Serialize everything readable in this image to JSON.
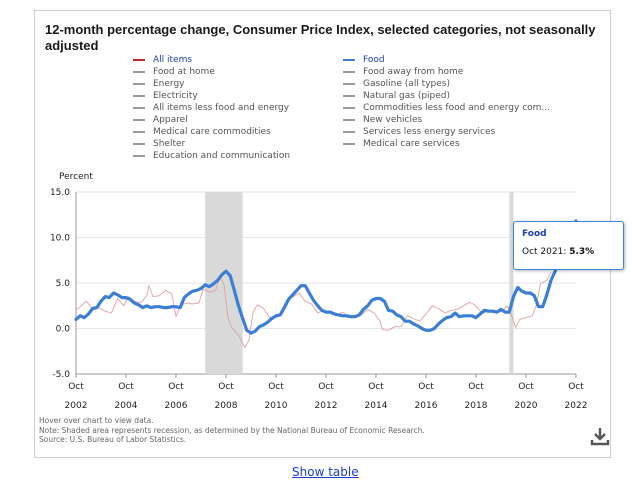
{
  "title": "12-month percentage change, Consumer Price Index, selected categories, not seasonally adjusted",
  "legend": {
    "left": [
      {
        "label": "All items",
        "color": "#c62828",
        "highlight": true
      },
      {
        "label": "Food at home",
        "color": "#9a9a9a"
      },
      {
        "label": "Energy",
        "color": "#9a9a9a"
      },
      {
        "label": "Electricity",
        "color": "#9a9a9a"
      },
      {
        "label": "All items less food and energy",
        "color": "#9a9a9a"
      },
      {
        "label": "Apparel",
        "color": "#9a9a9a"
      },
      {
        "label": "Medical care commodities",
        "color": "#9a9a9a"
      },
      {
        "label": "Shelter",
        "color": "#9a9a9a"
      },
      {
        "label": "Education and communication",
        "color": "#9a9a9a"
      }
    ],
    "right": [
      {
        "label": "Food",
        "color": "#3a7fd5",
        "highlight": true
      },
      {
        "label": "Food away from home",
        "color": "#9a9a9a"
      },
      {
        "label": "Gasoline (all types)",
        "color": "#9a9a9a"
      },
      {
        "label": "Natural gas (piped)",
        "color": "#9a9a9a"
      },
      {
        "label": "Commodities less food and energy com...",
        "color": "#9a9a9a"
      },
      {
        "label": "New vehicles",
        "color": "#9a9a9a"
      },
      {
        "label": "Services less energy services",
        "color": "#9a9a9a"
      },
      {
        "label": "Medical care services",
        "color": "#9a9a9a"
      }
    ]
  },
  "tooltip": {
    "series": "Food",
    "date": "Oct 2021",
    "value": "5.3%"
  },
  "footnotes": [
    "Hover over chart to view data.",
    "Note: Shaded area represents recession, as determined by the National Bureau of Economic Research.",
    "Source: U.S. Bureau of Labor Statistics."
  ],
  "show_table": "Show table",
  "icons": {
    "download": "download-icon"
  },
  "chart_data": {
    "type": "line",
    "ylabel": "Percent",
    "ylim": [
      -5,
      15
    ],
    "yticks": [
      "15.0",
      "10.0",
      "5.0",
      "0.0",
      "-5.0"
    ],
    "xticks": [
      {
        "line1": "Oct",
        "line2": "2002"
      },
      {
        "line1": "Oct",
        "line2": "2004"
      },
      {
        "line1": "Oct",
        "line2": "2006"
      },
      {
        "line1": "Oct",
        "line2": "2008"
      },
      {
        "line1": "Oct",
        "line2": "2010"
      },
      {
        "line1": "Oct",
        "line2": "2012"
      },
      {
        "line1": "Oct",
        "line2": "2014"
      },
      {
        "line1": "Oct",
        "line2": "2016"
      },
      {
        "line1": "Oct",
        "line2": "2018"
      },
      {
        "line1": "Oct",
        "line2": "2020"
      },
      {
        "line1": "Oct",
        "line2": "2022"
      }
    ],
    "xlim": [
      "2002-10",
      "2022-10"
    ],
    "grid": true,
    "recessions": [
      [
        "2007-12",
        "2009-06"
      ],
      [
        "2020-02",
        "2020-04"
      ]
    ],
    "series": [
      {
        "name": "Food",
        "color": "#3a7fd5",
        "points": [
          [
            "2002-10",
            1.0
          ],
          [
            "2002-12",
            1.4
          ],
          [
            "2003-02",
            1.2
          ],
          [
            "2003-04",
            1.6
          ],
          [
            "2003-06",
            2.2
          ],
          [
            "2003-08",
            2.3
          ],
          [
            "2003-10",
            3.0
          ],
          [
            "2003-12",
            3.5
          ],
          [
            "2004-02",
            3.4
          ],
          [
            "2004-04",
            3.9
          ],
          [
            "2004-06",
            3.7
          ],
          [
            "2004-08",
            3.4
          ],
          [
            "2004-10",
            3.4
          ],
          [
            "2004-12",
            3.2
          ],
          [
            "2005-02",
            2.8
          ],
          [
            "2005-04",
            2.6
          ],
          [
            "2005-06",
            2.3
          ],
          [
            "2005-08",
            2.5
          ],
          [
            "2005-10",
            2.3
          ],
          [
            "2005-12",
            2.4
          ],
          [
            "2006-02",
            2.4
          ],
          [
            "2006-04",
            2.3
          ],
          [
            "2006-06",
            2.3
          ],
          [
            "2006-08",
            2.4
          ],
          [
            "2006-10",
            2.4
          ],
          [
            "2006-12",
            2.3
          ],
          [
            "2007-02",
            3.4
          ],
          [
            "2007-04",
            3.8
          ],
          [
            "2007-06",
            4.1
          ],
          [
            "2007-08",
            4.2
          ],
          [
            "2007-10",
            4.4
          ],
          [
            "2007-12",
            4.8
          ],
          [
            "2008-02",
            4.6
          ],
          [
            "2008-04",
            4.9
          ],
          [
            "2008-06",
            5.3
          ],
          [
            "2008-08",
            5.9
          ],
          [
            "2008-10",
            6.3
          ],
          [
            "2008-12",
            5.8
          ],
          [
            "2009-02",
            4.2
          ],
          [
            "2009-04",
            2.5
          ],
          [
            "2009-06",
            1.1
          ],
          [
            "2009-08",
            -0.2
          ],
          [
            "2009-10",
            -0.5
          ],
          [
            "2009-12",
            -0.3
          ],
          [
            "2010-02",
            0.2
          ],
          [
            "2010-04",
            0.4
          ],
          [
            "2010-06",
            0.7
          ],
          [
            "2010-08",
            1.1
          ],
          [
            "2010-10",
            1.4
          ],
          [
            "2010-12",
            1.5
          ],
          [
            "2011-02",
            2.3
          ],
          [
            "2011-04",
            3.2
          ],
          [
            "2011-06",
            3.7
          ],
          [
            "2011-08",
            4.2
          ],
          [
            "2011-10",
            4.7
          ],
          [
            "2011-12",
            4.7
          ],
          [
            "2012-02",
            3.9
          ],
          [
            "2012-04",
            3.1
          ],
          [
            "2012-06",
            2.5
          ],
          [
            "2012-08",
            2.0
          ],
          [
            "2012-10",
            1.8
          ],
          [
            "2012-12",
            1.8
          ],
          [
            "2013-02",
            1.6
          ],
          [
            "2013-04",
            1.5
          ],
          [
            "2013-06",
            1.4
          ],
          [
            "2013-08",
            1.4
          ],
          [
            "2013-10",
            1.3
          ],
          [
            "2013-12",
            1.3
          ],
          [
            "2014-02",
            1.5
          ],
          [
            "2014-04",
            2.1
          ],
          [
            "2014-06",
            2.5
          ],
          [
            "2014-08",
            3.1
          ],
          [
            "2014-10",
            3.3
          ],
          [
            "2014-12",
            3.3
          ],
          [
            "2015-02",
            3.0
          ],
          [
            "2015-04",
            2.0
          ],
          [
            "2015-06",
            1.9
          ],
          [
            "2015-08",
            1.5
          ],
          [
            "2015-10",
            1.3
          ],
          [
            "2015-12",
            0.8
          ],
          [
            "2016-02",
            0.8
          ],
          [
            "2016-04",
            0.5
          ],
          [
            "2016-06",
            0.3
          ],
          [
            "2016-08",
            0.0
          ],
          [
            "2016-10",
            -0.2
          ],
          [
            "2016-12",
            -0.2
          ],
          [
            "2017-02",
            0.0
          ],
          [
            "2017-04",
            0.5
          ],
          [
            "2017-06",
            0.9
          ],
          [
            "2017-08",
            1.2
          ],
          [
            "2017-10",
            1.3
          ],
          [
            "2017-12",
            1.7
          ],
          [
            "2018-02",
            1.3
          ],
          [
            "2018-04",
            1.4
          ],
          [
            "2018-06",
            1.4
          ],
          [
            "2018-08",
            1.4
          ],
          [
            "2018-10",
            1.2
          ],
          [
            "2018-12",
            1.6
          ],
          [
            "2019-02",
            2.0
          ],
          [
            "2019-04",
            1.9
          ],
          [
            "2019-06",
            1.9
          ],
          [
            "2019-08",
            1.8
          ],
          [
            "2019-10",
            2.1
          ],
          [
            "2019-12",
            1.8
          ],
          [
            "2020-02",
            1.8
          ],
          [
            "2020-04",
            3.5
          ],
          [
            "2020-06",
            4.5
          ],
          [
            "2020-08",
            4.1
          ],
          [
            "2020-10",
            3.9
          ],
          [
            "2020-12",
            3.9
          ],
          [
            "2021-02",
            3.6
          ],
          [
            "2021-04",
            2.4
          ],
          [
            "2021-06",
            2.4
          ],
          [
            "2021-08",
            3.7
          ],
          [
            "2021-10",
            5.3
          ],
          [
            "2021-12",
            6.3
          ],
          [
            "2022-02",
            7.9
          ],
          [
            "2022-04",
            9.4
          ],
          [
            "2022-06",
            10.4
          ],
          [
            "2022-08",
            11.4
          ],
          [
            "2022-10",
            11.8
          ]
        ]
      },
      {
        "name": "All items",
        "color": "#e0a0a0",
        "points": [
          [
            "2002-10",
            2.0
          ],
          [
            "2003-01",
            2.6
          ],
          [
            "2003-03",
            3.0
          ],
          [
            "2003-06",
            2.1
          ],
          [
            "2003-09",
            2.3
          ],
          [
            "2003-12",
            1.9
          ],
          [
            "2004-03",
            1.7
          ],
          [
            "2004-06",
            3.3
          ],
          [
            "2004-09",
            2.5
          ],
          [
            "2004-11",
            3.5
          ],
          [
            "2005-02",
            3.0
          ],
          [
            "2005-05",
            2.8
          ],
          [
            "2005-08",
            3.6
          ],
          [
            "2005-09",
            4.7
          ],
          [
            "2005-11",
            3.5
          ],
          [
            "2006-02",
            3.6
          ],
          [
            "2006-05",
            4.2
          ],
          [
            "2006-08",
            3.8
          ],
          [
            "2006-10",
            1.3
          ],
          [
            "2006-12",
            2.5
          ],
          [
            "2007-03",
            2.8
          ],
          [
            "2007-06",
            2.7
          ],
          [
            "2007-09",
            2.8
          ],
          [
            "2007-11",
            4.3
          ],
          [
            "2008-02",
            4.0
          ],
          [
            "2008-05",
            4.2
          ],
          [
            "2008-07",
            5.6
          ],
          [
            "2008-09",
            4.9
          ],
          [
            "2008-11",
            1.1
          ],
          [
            "2009-01",
            0.0
          ],
          [
            "2009-04",
            -0.7
          ],
          [
            "2009-07",
            -2.1
          ],
          [
            "2009-09",
            -1.3
          ],
          [
            "2009-11",
            1.8
          ],
          [
            "2010-01",
            2.6
          ],
          [
            "2010-04",
            2.2
          ],
          [
            "2010-07",
            1.2
          ],
          [
            "2010-10",
            1.2
          ],
          [
            "2011-01",
            1.6
          ],
          [
            "2011-04",
            3.2
          ],
          [
            "2011-07",
            3.6
          ],
          [
            "2011-09",
            3.9
          ],
          [
            "2011-12",
            3.0
          ],
          [
            "2012-03",
            2.7
          ],
          [
            "2012-06",
            1.7
          ],
          [
            "2012-09",
            2.0
          ],
          [
            "2012-12",
            1.7
          ],
          [
            "2013-03",
            1.5
          ],
          [
            "2013-06",
            1.8
          ],
          [
            "2013-09",
            1.2
          ],
          [
            "2013-12",
            1.5
          ],
          [
            "2014-03",
            1.5
          ],
          [
            "2014-06",
            2.1
          ],
          [
            "2014-09",
            1.7
          ],
          [
            "2014-12",
            0.8
          ],
          [
            "2015-01",
            -0.1
          ],
          [
            "2015-04",
            -0.2
          ],
          [
            "2015-07",
            0.2
          ],
          [
            "2015-10",
            0.2
          ],
          [
            "2016-01",
            1.4
          ],
          [
            "2016-04",
            1.1
          ],
          [
            "2016-07",
            0.8
          ],
          [
            "2016-10",
            1.6
          ],
          [
            "2017-01",
            2.5
          ],
          [
            "2017-04",
            2.2
          ],
          [
            "2017-07",
            1.7
          ],
          [
            "2017-10",
            2.0
          ],
          [
            "2018-01",
            2.1
          ],
          [
            "2018-04",
            2.5
          ],
          [
            "2018-07",
            2.9
          ],
          [
            "2018-10",
            2.5
          ],
          [
            "2019-01",
            1.6
          ],
          [
            "2019-04",
            2.0
          ],
          [
            "2019-07",
            1.8
          ],
          [
            "2019-10",
            1.8
          ],
          [
            "2020-01",
            2.5
          ],
          [
            "2020-03",
            1.5
          ],
          [
            "2020-05",
            0.1
          ],
          [
            "2020-07",
            1.0
          ],
          [
            "2020-10",
            1.2
          ],
          [
            "2021-01",
            1.4
          ],
          [
            "2021-03",
            2.6
          ],
          [
            "2021-05",
            5.0
          ],
          [
            "2021-08",
            5.3
          ],
          [
            "2021-10",
            6.2
          ]
        ]
      }
    ]
  }
}
